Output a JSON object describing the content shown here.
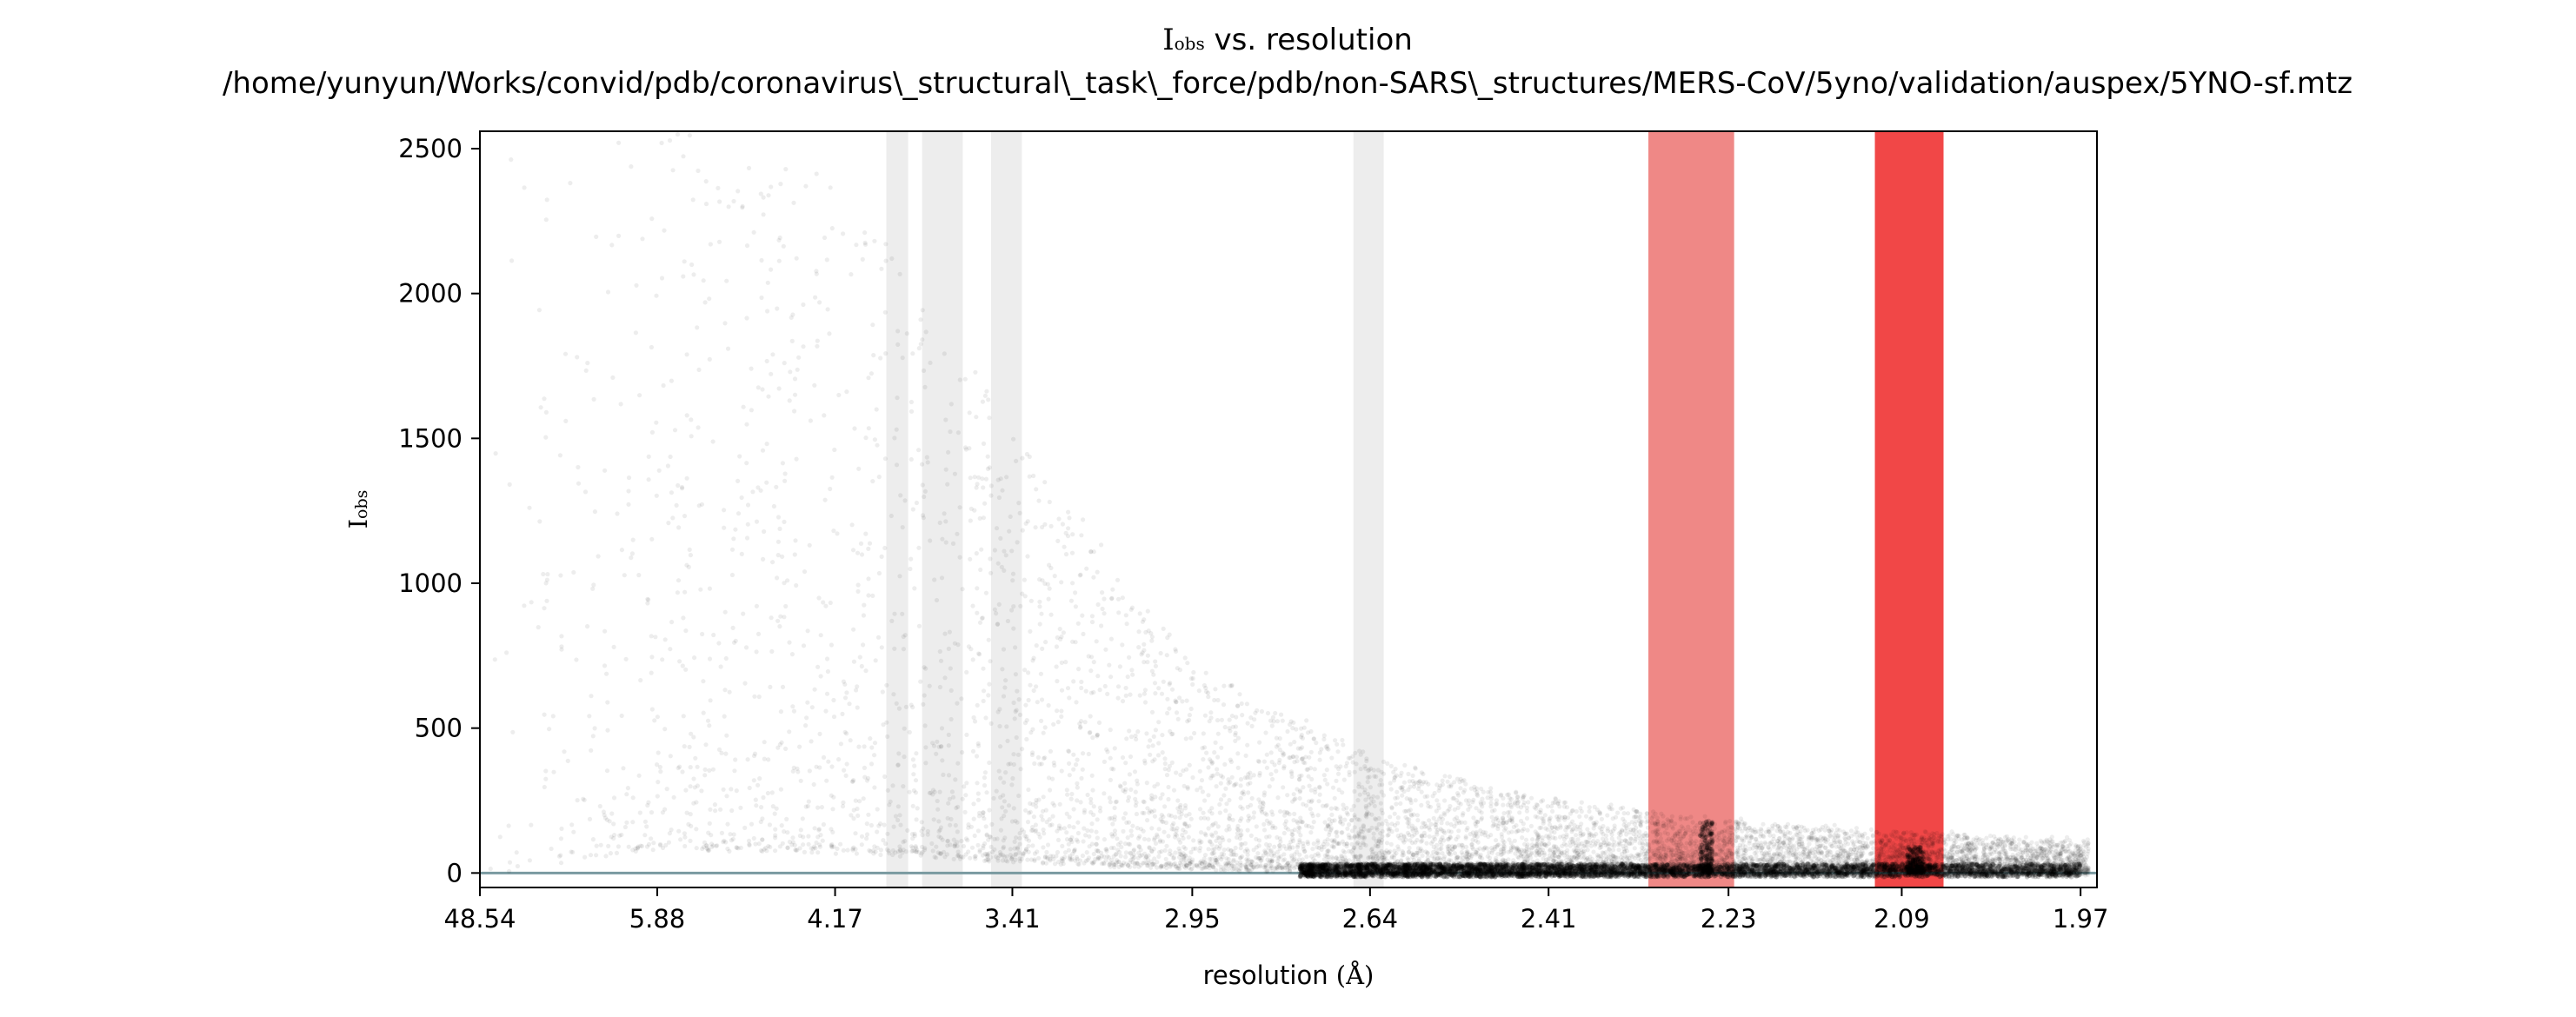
{
  "chart_data": {
    "type": "scatter",
    "title": {
      "symbol": "I",
      "symbol_sub": "obs",
      "rest": " vs. resolution",
      "path": "/home/yunyun/Works/convid/pdb/coronavirus\\_structural\\_task\\_force/pdb/non-SARS\\_structures/MERS-CoV/5yno/validation/auspex/5YNO-sf.mtz"
    },
    "xlabel": {
      "text": "resolution ",
      "unit": "(Å)"
    },
    "ylabel": {
      "symbol": "I",
      "symbol_sub": "obs"
    },
    "x_scale": "reciprocal-square (1/d²)",
    "xlim": [
      48.54,
      1.96
    ],
    "ylim": [
      -50,
      2560
    ],
    "x_ticks": [
      {
        "value": 48.54,
        "label": "48.54"
      },
      {
        "value": 5.88,
        "label": "5.88"
      },
      {
        "value": 4.17,
        "label": "4.17"
      },
      {
        "value": 3.41,
        "label": "3.41"
      },
      {
        "value": 2.95,
        "label": "2.95"
      },
      {
        "value": 2.64,
        "label": "2.64"
      },
      {
        "value": 2.41,
        "label": "2.41"
      },
      {
        "value": 2.23,
        "label": "2.23"
      },
      {
        "value": 2.09,
        "label": "2.09"
      },
      {
        "value": 1.97,
        "label": "1.97"
      }
    ],
    "y_ticks": [
      {
        "value": 0,
        "label": "0"
      },
      {
        "value": 500,
        "label": "500"
      },
      {
        "value": 1000,
        "label": "1000"
      },
      {
        "value": 1500,
        "label": "1500"
      },
      {
        "value": 2000,
        "label": "2000"
      },
      {
        "value": 2500,
        "label": "2500"
      }
    ],
    "grid": false,
    "legend": "none",
    "bands": [
      {
        "from": 3.9,
        "to": 3.8,
        "color": "#d6d6d6",
        "opacity": 0.45
      },
      {
        "from": 3.74,
        "to": 3.58,
        "color": "#d6d6d6",
        "opacity": 0.45
      },
      {
        "from": 3.48,
        "to": 3.38,
        "color": "#d6d6d6",
        "opacity": 0.45
      },
      {
        "from": 2.665,
        "to": 2.62,
        "color": "#d6d6d6",
        "opacity": 0.45
      },
      {
        "from": 2.305,
        "to": 2.225,
        "color": "#e53935",
        "opacity": 0.6
      },
      {
        "from": 2.11,
        "to": 2.06,
        "color": "#f03333",
        "opacity": 0.9
      }
    ],
    "baseline": {
      "y": 0,
      "color": "#7a9aa0"
    },
    "point_color": "#000000",
    "point_opacity": 0.07,
    "reflection_envelope": [
      {
        "d": 48.54,
        "median_I": 0,
        "spread_I": 2500
      },
      {
        "d": 5.88,
        "median_I": 300,
        "spread_I": 2500
      },
      {
        "d": 4.17,
        "median_I": 250,
        "spread_I": 2400
      },
      {
        "d": 3.41,
        "median_I": 150,
        "spread_I": 1500
      },
      {
        "d": 2.95,
        "median_I": 60,
        "spread_I": 700
      },
      {
        "d": 2.64,
        "median_I": 25,
        "spread_I": 400
      },
      {
        "d": 2.41,
        "median_I": 15,
        "spread_I": 250
      },
      {
        "d": 2.23,
        "median_I": 10,
        "spread_I": 180
      },
      {
        "d": 2.09,
        "median_I": 8,
        "spread_I": 140
      },
      {
        "d": 1.97,
        "median_I": 5,
        "spread_I": 110
      }
    ],
    "ice_ring_spikes": [
      {
        "d": 2.25,
        "I": 180
      },
      {
        "d": 2.08,
        "I": 90
      }
    ]
  }
}
